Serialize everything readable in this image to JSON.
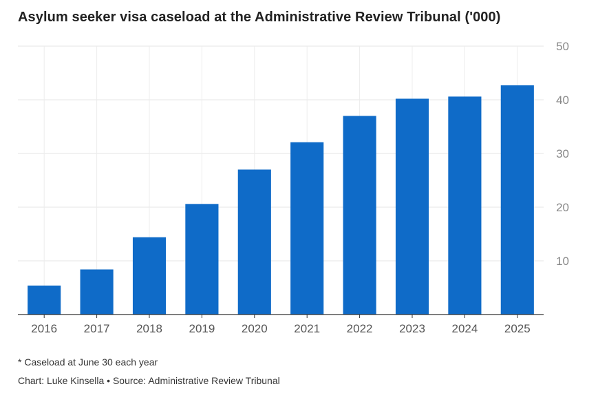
{
  "chart_data": {
    "type": "bar",
    "title": "Asylum seeker visa caseload at the Administrative Review Tribunal ('000)",
    "categories": [
      "2016",
      "2017",
      "2018",
      "2019",
      "2020",
      "2021",
      "2022",
      "2023",
      "2024",
      "2025"
    ],
    "values": [
      5.4,
      8.4,
      14.4,
      20.6,
      27.0,
      32.1,
      37.0,
      40.2,
      40.6,
      42.7
    ],
    "ylim": [
      0,
      50
    ],
    "yticks": [
      10,
      20,
      30,
      40,
      50
    ],
    "y_axis_position": "right",
    "xlabel": "",
    "ylabel": "",
    "grid": true,
    "bar_color": "#0f6bc8"
  },
  "footnote": "* Caseload at June 30 each year",
  "credit": "Chart: Luke Kinsella • Source: Administrative Review Tribunal"
}
